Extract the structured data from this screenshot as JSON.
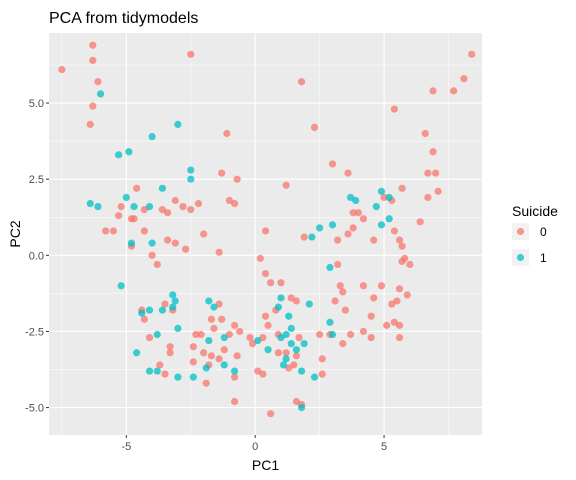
{
  "chart_data": {
    "type": "scatter",
    "title": "PCA from tidymodels",
    "xlabel": "PC1",
    "ylabel": "PC2",
    "xlim": [
      -8.0,
      8.8
    ],
    "ylim": [
      -5.9,
      7.3
    ],
    "x_ticks": [
      -5,
      0,
      5
    ],
    "x_tick_labels": [
      "-5",
      "0",
      "5"
    ],
    "y_ticks": [
      -5.0,
      -2.5,
      0.0,
      2.5,
      5.0
    ],
    "y_tick_labels": [
      "-5.0",
      "-2.5",
      "0.0",
      "2.5",
      "5.0"
    ],
    "grid": true,
    "legend": {
      "title": "Suicide",
      "position": "right",
      "entries": [
        {
          "label": "0",
          "color": "#F8766D"
        },
        {
          "label": "1",
          "color": "#00BFC4"
        }
      ]
    },
    "series": [
      {
        "name": "0",
        "color": "#F8766D",
        "points": [
          [
            -7.5,
            6.1
          ],
          [
            -6.3,
            6.9
          ],
          [
            -6.3,
            6.4
          ],
          [
            -6.1,
            5.7
          ],
          [
            -6.3,
            4.9
          ],
          [
            -6.4,
            4.3
          ],
          [
            -2.5,
            6.6
          ],
          [
            -1.1,
            4.0
          ],
          [
            1.8,
            5.7
          ],
          [
            2.3,
            4.2
          ],
          [
            8.4,
            6.6
          ],
          [
            8.1,
            5.8
          ],
          [
            7.7,
            5.4
          ],
          [
            6.9,
            5.4
          ],
          [
            5.4,
            4.8
          ],
          [
            6.6,
            4.0
          ],
          [
            6.9,
            3.4
          ],
          [
            6.7,
            2.7
          ],
          [
            7.0,
            2.7
          ],
          [
            7.1,
            2.1
          ],
          [
            6.7,
            1.9
          ],
          [
            5.7,
            2.2
          ],
          [
            5.3,
            1.8
          ],
          [
            5.0,
            1.9
          ],
          [
            6.4,
            1.1
          ],
          [
            3.6,
            2.7
          ],
          [
            3.0,
            3.0
          ],
          [
            1.2,
            2.3
          ],
          [
            -1.3,
            2.7
          ],
          [
            -0.7,
            2.5
          ],
          [
            -1.0,
            1.8
          ],
          [
            -0.8,
            1.7
          ],
          [
            -2.2,
            1.7
          ],
          [
            -2.5,
            1.5
          ],
          [
            -3.1,
            1.8
          ],
          [
            -3.6,
            1.5
          ],
          [
            -3.4,
            1.4
          ],
          [
            -2.8,
            1.6
          ],
          [
            -4.3,
            1.5
          ],
          [
            -4.6,
            2.2
          ],
          [
            -5.2,
            1.6
          ],
          [
            -5.3,
            1.3
          ],
          [
            -4.8,
            1.2
          ],
          [
            -4.7,
            1.2
          ],
          [
            -4.3,
            0.8
          ],
          [
            -5.5,
            0.8
          ],
          [
            -5.8,
            0.8
          ],
          [
            -4.8,
            0.3
          ],
          [
            -3.4,
            0.5
          ],
          [
            -3.1,
            0.4
          ],
          [
            -2.7,
            0.2
          ],
          [
            -4.0,
            0.0
          ],
          [
            -3.8,
            -0.3
          ],
          [
            -2.0,
            0.7
          ],
          [
            -1.4,
            0.1
          ],
          [
            0.4,
            0.8
          ],
          [
            0.2,
            -0.1
          ],
          [
            0.4,
            -0.6
          ],
          [
            0.6,
            -0.9
          ],
          [
            1.0,
            -0.9
          ],
          [
            1.4,
            -1.4
          ],
          [
            1.6,
            -1.5
          ],
          [
            1.9,
            0.6
          ],
          [
            3.2,
            -0.3
          ],
          [
            3.3,
            -1.0
          ],
          [
            3.4,
            -1.2
          ],
          [
            3.1,
            -1.5
          ],
          [
            3.8,
            1.4
          ],
          [
            4.0,
            1.4
          ],
          [
            4.2,
            1.2
          ],
          [
            3.8,
            0.9
          ],
          [
            3.6,
            0.7
          ],
          [
            3.2,
            0.5
          ],
          [
            4.6,
            0.5
          ],
          [
            5.4,
            0.8
          ],
          [
            5.6,
            0.5
          ],
          [
            5.7,
            0.3
          ],
          [
            5.8,
            -0.1
          ],
          [
            5.7,
            -0.2
          ],
          [
            6.0,
            -0.3
          ],
          [
            5.6,
            -1.1
          ],
          [
            5.9,
            -1.3
          ],
          [
            5.5,
            -1.5
          ],
          [
            5.3,
            -1.6
          ],
          [
            5.4,
            -2.2
          ],
          [
            5.6,
            -2.3
          ],
          [
            4.9,
            -1.0
          ],
          [
            4.2,
            -1.0
          ],
          [
            4.6,
            -1.4
          ],
          [
            4.5,
            -2.0
          ],
          [
            3.5,
            -1.8
          ],
          [
            4.5,
            -2.7
          ],
          [
            5.6,
            -2.7
          ],
          [
            5.1,
            -2.3
          ],
          [
            4.2,
            -2.5
          ],
          [
            3.7,
            -2.6
          ],
          [
            3.4,
            -2.9
          ],
          [
            2.9,
            -2.6
          ],
          [
            2.5,
            -2.6
          ],
          [
            1.7,
            -2.7
          ],
          [
            1.6,
            -3.3
          ],
          [
            1.2,
            -3.2
          ],
          [
            0.9,
            -2.6
          ],
          [
            0.8,
            -1.8
          ],
          [
            0.4,
            -2.0
          ],
          [
            0.5,
            -2.3
          ],
          [
            0.3,
            -2.7
          ],
          [
            -0.1,
            -2.9
          ],
          [
            -0.2,
            -2.7
          ],
          [
            -0.6,
            -2.5
          ],
          [
            -0.8,
            -2.3
          ],
          [
            -1.0,
            -2.6
          ],
          [
            -1.3,
            -2.1
          ],
          [
            -1.4,
            -1.6
          ],
          [
            -1.6,
            -2.4
          ],
          [
            -1.7,
            -2.1
          ],
          [
            -2.1,
            -2.6
          ],
          [
            -2.3,
            -2.6
          ],
          [
            -2.4,
            -3.0
          ],
          [
            -2.0,
            -3.2
          ],
          [
            -1.7,
            -3.3
          ],
          [
            -1.2,
            -3.1
          ],
          [
            -0.7,
            -3.3
          ],
          [
            -1.4,
            -3.4
          ],
          [
            -1.8,
            -3.6
          ],
          [
            -2.4,
            -3.5
          ],
          [
            -1.9,
            -4.2
          ],
          [
            -0.8,
            -4.0
          ],
          [
            -0.8,
            -4.8
          ],
          [
            0.1,
            -3.8
          ],
          [
            0.3,
            -3.9
          ],
          [
            0.9,
            -3.2
          ],
          [
            1.5,
            -3.6
          ],
          [
            1.3,
            -3.7
          ],
          [
            1.6,
            -4.8
          ],
          [
            0.6,
            -5.2
          ],
          [
            1.8,
            -4.9
          ],
          [
            2.6,
            -3.9
          ],
          [
            2.6,
            -3.4
          ],
          [
            -3.3,
            -3.0
          ],
          [
            -3.3,
            -3.2
          ],
          [
            -4.1,
            -2.7
          ],
          [
            -4.3,
            -2.1
          ],
          [
            -3.7,
            -3.6
          ],
          [
            -3.5,
            -3.9
          ],
          [
            -4.4,
            -1.8
          ],
          [
            -3.5,
            -1.6
          ],
          [
            -3.2,
            -1.8
          ]
        ]
      },
      {
        "name": "1",
        "color": "#00BFC4",
        "points": [
          [
            -6.0,
            5.3
          ],
          [
            -3.0,
            4.3
          ],
          [
            -4.0,
            3.9
          ],
          [
            -5.3,
            3.3
          ],
          [
            -4.9,
            3.4
          ],
          [
            -2.5,
            2.8
          ],
          [
            -2.5,
            2.5
          ],
          [
            -3.6,
            2.2
          ],
          [
            -5.0,
            1.9
          ],
          [
            -4.7,
            1.6
          ],
          [
            -6.4,
            1.7
          ],
          [
            -6.1,
            1.6
          ],
          [
            -4.1,
            1.6
          ],
          [
            -4.8,
            0.4
          ],
          [
            -4.0,
            0.4
          ],
          [
            -5.2,
            -1.0
          ],
          [
            -4.4,
            -1.9
          ],
          [
            -4.1,
            -1.8
          ],
          [
            -3.6,
            -1.8
          ],
          [
            -3.2,
            -1.3
          ],
          [
            -3.1,
            -1.5
          ],
          [
            -3.2,
            -1.7
          ],
          [
            -3.0,
            -2.4
          ],
          [
            -3.8,
            -2.6
          ],
          [
            -4.6,
            -3.2
          ],
          [
            -4.1,
            -3.8
          ],
          [
            -3.8,
            -3.8
          ],
          [
            -3.0,
            -4.0
          ],
          [
            -2.4,
            -4.0
          ],
          [
            -1.9,
            -3.7
          ],
          [
            -1.2,
            -3.6
          ],
          [
            -0.8,
            -3.8
          ],
          [
            -1.8,
            -1.5
          ],
          [
            -1.6,
            -1.7
          ],
          [
            -1.2,
            -2.7
          ],
          [
            -1.8,
            -2.8
          ],
          [
            0.1,
            -2.8
          ],
          [
            0.5,
            -3.1
          ],
          [
            1.0,
            -2.7
          ],
          [
            1.2,
            -2.6
          ],
          [
            1.4,
            -2.4
          ],
          [
            1.4,
            -2.9
          ],
          [
            1.6,
            -3.1
          ],
          [
            1.2,
            -3.4
          ],
          [
            1.1,
            -3.6
          ],
          [
            1.8,
            -3.8
          ],
          [
            2.3,
            -4.0
          ],
          [
            1.8,
            -5.0
          ],
          [
            1.9,
            -2.9
          ],
          [
            0.9,
            -1.7
          ],
          [
            1.0,
            -1.4
          ],
          [
            1.3,
            -2.0
          ],
          [
            2.2,
            0.6
          ],
          [
            2.5,
            0.9
          ],
          [
            3.0,
            1.0
          ],
          [
            3.7,
            1.9
          ],
          [
            3.9,
            1.8
          ],
          [
            4.9,
            2.1
          ],
          [
            5.2,
            1.9
          ],
          [
            4.7,
            1.6
          ],
          [
            5.2,
            1.2
          ],
          [
            4.9,
            1.0
          ],
          [
            2.9,
            -0.4
          ],
          [
            3.0,
            -2.6
          ],
          [
            2.9,
            -2.2
          ],
          [
            2.1,
            -1.6
          ]
        ]
      }
    ]
  }
}
